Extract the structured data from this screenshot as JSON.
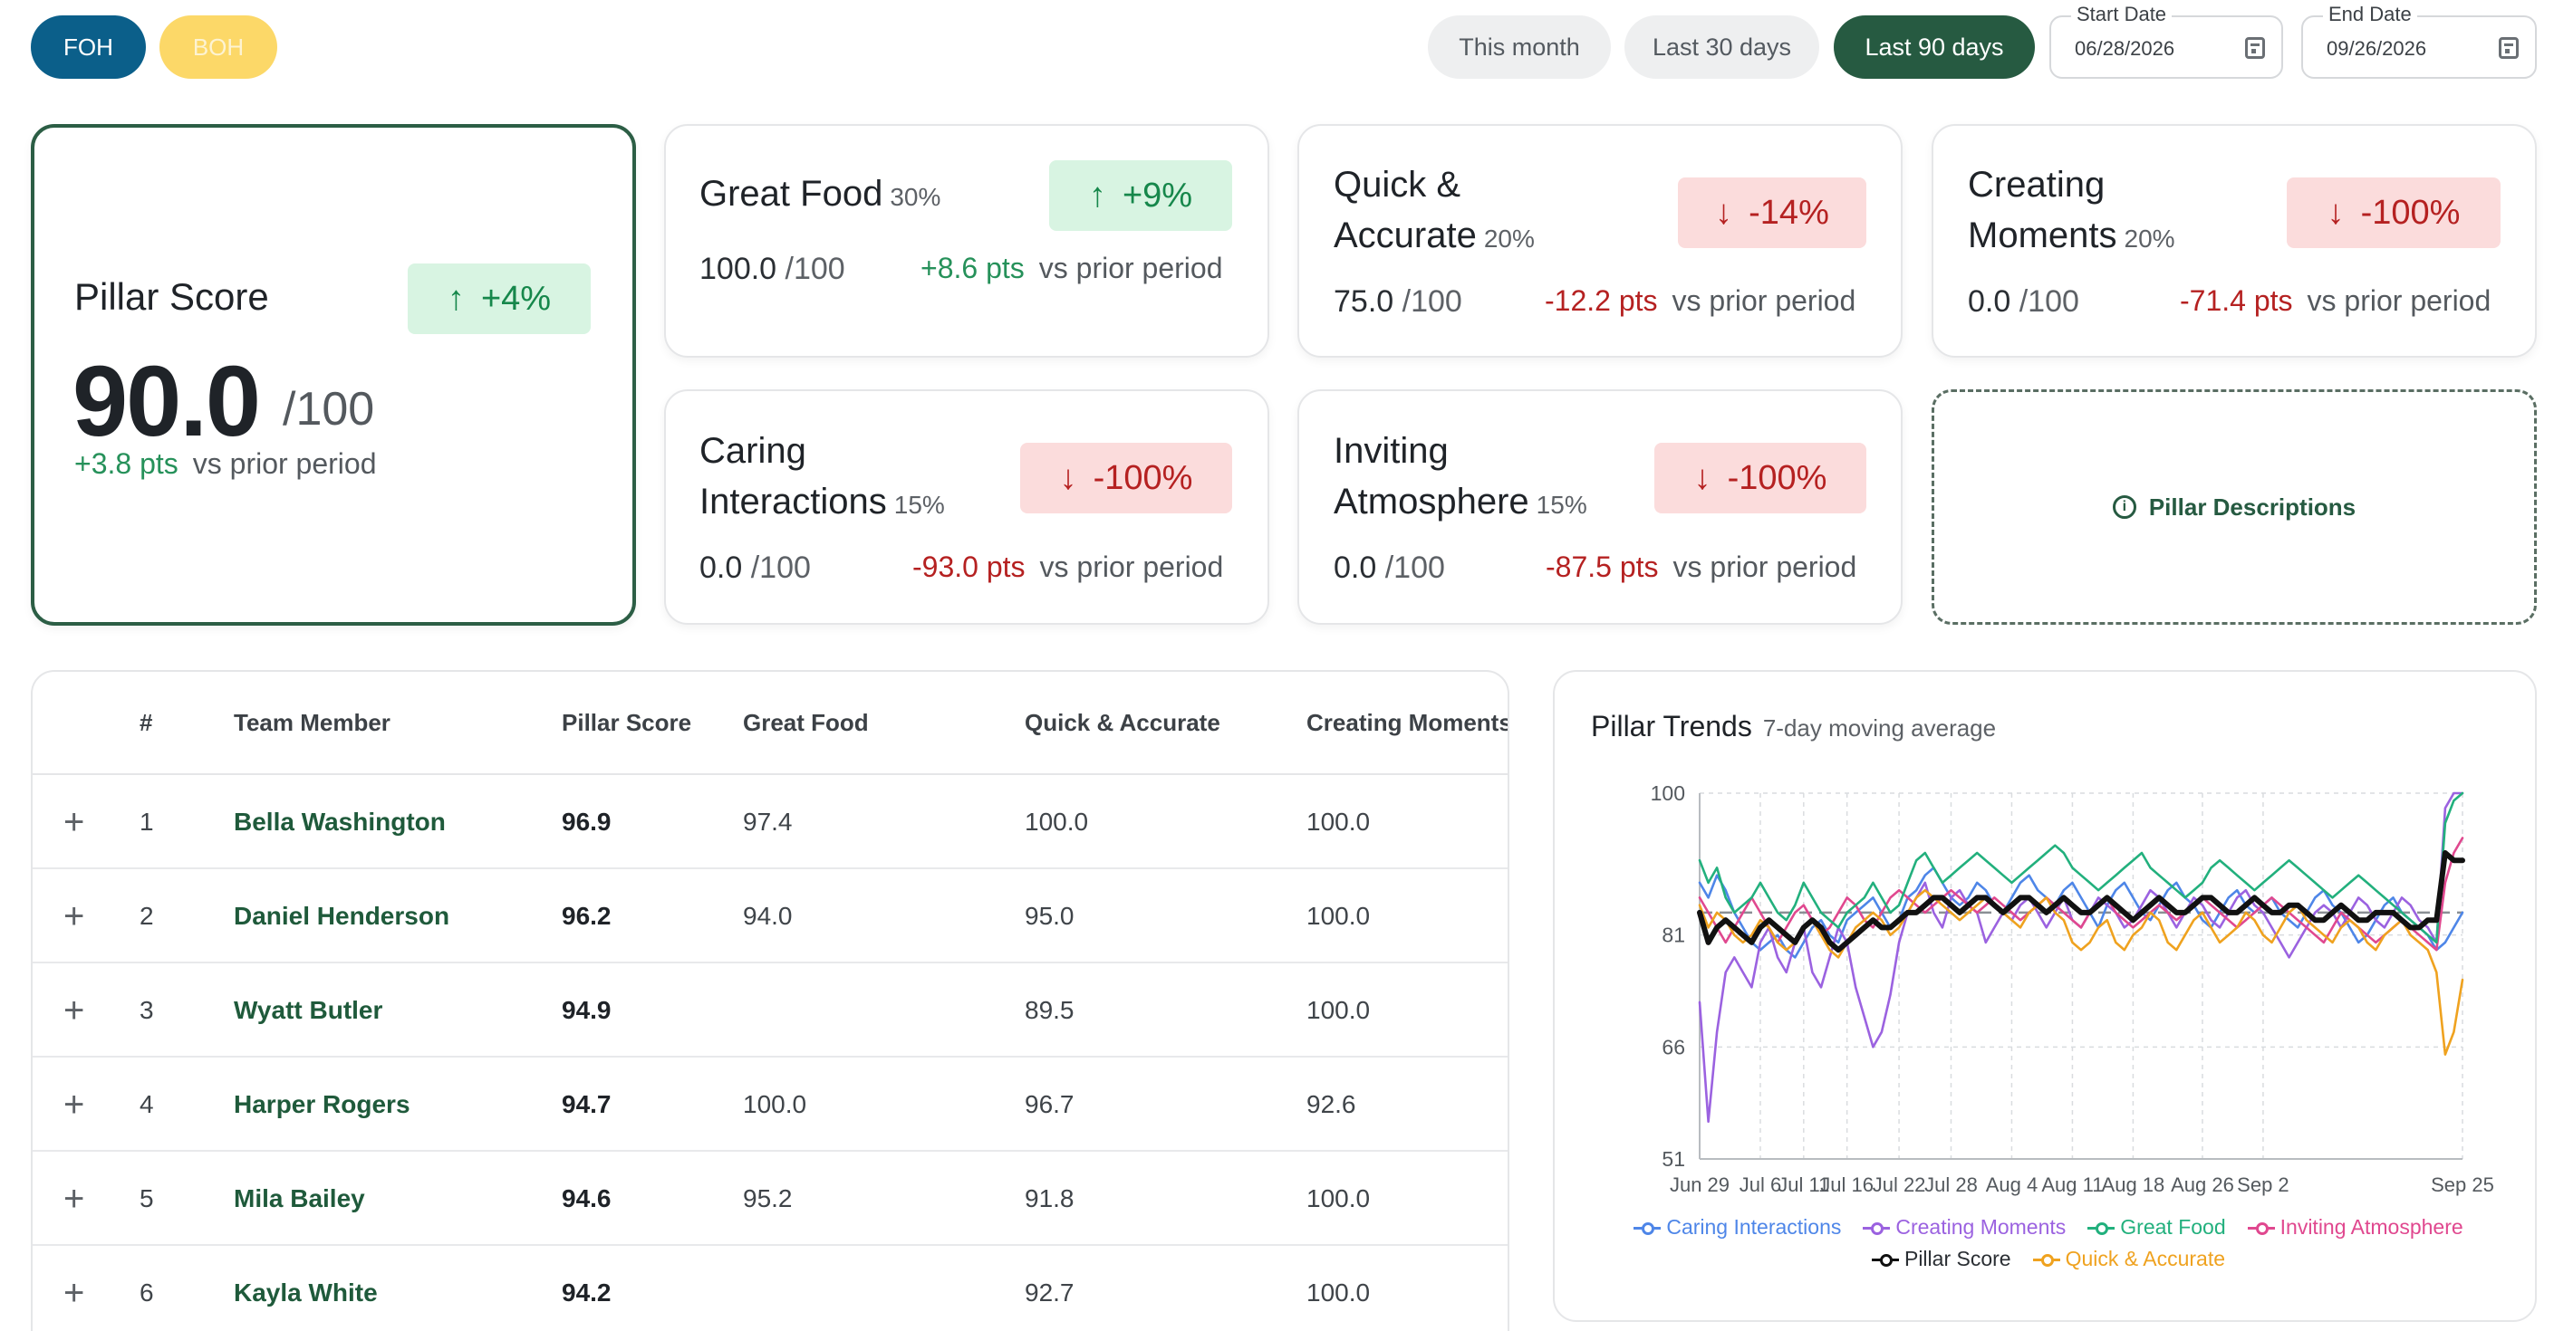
{
  "toggle": {
    "foh": "FOH",
    "boh": "BOH"
  },
  "ranges": {
    "month": "This month",
    "last30": "Last 30 days",
    "last90": "Last 90 days"
  },
  "dates": {
    "start_label": "Start Date",
    "start_value": "06/28/2026",
    "end_label": "End Date",
    "end_value": "09/26/2026"
  },
  "pillar_score": {
    "title": "Pillar Score",
    "badge": "+4%",
    "score": "90.0",
    "denominator": "/100",
    "delta": "+3.8 pts",
    "vs": "vs prior period"
  },
  "pillars": {
    "great_food": {
      "title": "Great Food",
      "weight": "30%",
      "badge": "+9%",
      "score": "100.0",
      "denominator": "/100",
      "delta": "+8.6 pts",
      "vs": "vs prior period"
    },
    "quick": {
      "title_1": "Quick &",
      "title_2": "Accurate",
      "weight": "20%",
      "badge": "-14%",
      "score": "75.0",
      "denominator": "/100",
      "delta": "-12.2 pts",
      "vs": "vs prior period"
    },
    "moments": {
      "title_1": "Creating",
      "title_2": "Moments",
      "weight": "20%",
      "badge": "-100%",
      "score": "0.0",
      "denominator": "/100",
      "delta": "-71.4 pts",
      "vs": "vs prior period"
    },
    "caring": {
      "title_1": "Caring",
      "title_2": "Interactions",
      "weight": "15%",
      "badge": "-100%",
      "score": "0.0",
      "denominator": "/100",
      "delta": "-93.0 pts",
      "vs": "vs prior period"
    },
    "inviting": {
      "title_1": "Inviting",
      "title_2": "Atmosphere",
      "weight": "15%",
      "badge": "-100%",
      "score": "0.0",
      "denominator": "/100",
      "delta": "-87.5 pts",
      "vs": "vs prior period"
    }
  },
  "descriptions_label": "Pillar Descriptions",
  "table": {
    "headers": {
      "rank": "#",
      "member": "Team Member",
      "pillar": "Pillar Score",
      "great_food": "Great Food",
      "quick": "Quick & Accurate",
      "moments": "Creating Moments"
    },
    "rows": [
      {
        "rank": "1",
        "name": "Bella Washington",
        "pillar": "96.9",
        "great_food": "97.4",
        "quick": "100.0",
        "moments": "100.0"
      },
      {
        "rank": "2",
        "name": "Daniel Henderson",
        "pillar": "96.2",
        "great_food": "94.0",
        "quick": "95.0",
        "moments": "100.0"
      },
      {
        "rank": "3",
        "name": "Wyatt Butler",
        "pillar": "94.9",
        "great_food": "",
        "quick": "89.5",
        "moments": "100.0"
      },
      {
        "rank": "4",
        "name": "Harper Rogers",
        "pillar": "94.7",
        "great_food": "100.0",
        "quick": "96.7",
        "moments": "92.6"
      },
      {
        "rank": "5",
        "name": "Mila Bailey",
        "pillar": "94.6",
        "great_food": "95.2",
        "quick": "91.8",
        "moments": "100.0"
      },
      {
        "rank": "6",
        "name": "Kayla White",
        "pillar": "94.2",
        "great_food": "",
        "quick": "92.7",
        "moments": "100.0"
      }
    ]
  },
  "colors": {
    "accent": "#265a41",
    "foh": "#0b5f8a",
    "boh": "#fcd868",
    "up": "#16874b",
    "down": "#b52121"
  },
  "chart_data": {
    "type": "line",
    "title": "Pillar Trends",
    "subtitle": "7-day moving average",
    "x_labels": [
      "Jun 29",
      "Jul 6",
      "Jul 11",
      "Jul 16",
      "Jul 22",
      "Jul 28",
      "Aug 4",
      "Aug 11",
      "Aug 18",
      "Aug 26",
      "Sep 2",
      "Sep 25"
    ],
    "x_label_days": [
      0,
      7,
      12,
      17,
      23,
      29,
      36,
      43,
      50,
      58,
      65,
      88
    ],
    "y_ticks": [
      100,
      81,
      66,
      51
    ],
    "ylim": [
      51,
      100
    ],
    "x_count": 89,
    "grid": true,
    "reference_line": 84,
    "legend_position": "bottom",
    "series": [
      {
        "name": "Caring Interactions",
        "color": "#4e86e8",
        "values": [
          88,
          86,
          89,
          87,
          84,
          82,
          80,
          79,
          80,
          81,
          79,
          78,
          80,
          82,
          83,
          81,
          80,
          83,
          84,
          85,
          86,
          84,
          82,
          83,
          86,
          87,
          89,
          90,
          88,
          86,
          85,
          86,
          88,
          87,
          85,
          84,
          86,
          88,
          89,
          87,
          86,
          85,
          87,
          88,
          86,
          84,
          82,
          85,
          87,
          88,
          86,
          84,
          83,
          85,
          87,
          88,
          86,
          85,
          83,
          82,
          84,
          86,
          87,
          85,
          84,
          85,
          86,
          84,
          83,
          82,
          84,
          86,
          87,
          85,
          84,
          82,
          80,
          81,
          83,
          85,
          86,
          84,
          83,
          82,
          81,
          79,
          80,
          82,
          84
        ]
      },
      {
        "name": "Creating Moments",
        "color": "#9b62e0",
        "values": [
          72,
          56,
          68,
          76,
          78,
          76,
          74,
          80,
          82,
          78,
          76,
          80,
          82,
          76,
          74,
          78,
          82,
          80,
          74,
          70,
          66,
          68,
          73,
          80,
          84,
          86,
          88,
          84,
          82,
          86,
          87,
          85,
          84,
          80,
          82,
          84,
          83,
          85,
          86,
          84,
          82,
          84,
          86,
          83,
          82,
          84,
          86,
          85,
          84,
          82,
          83,
          85,
          87,
          86,
          84,
          82,
          84,
          86,
          85,
          83,
          82,
          84,
          86,
          87,
          85,
          84,
          82,
          80,
          78,
          80,
          82,
          84,
          85,
          84,
          82,
          84,
          86,
          85,
          83,
          82,
          84,
          86,
          85,
          83,
          82,
          80,
          98,
          100,
          100
        ]
      },
      {
        "name": "Great Food",
        "color": "#22b07d",
        "values": [
          91,
          88,
          90,
          86,
          84,
          85,
          86,
          88,
          86,
          84,
          83,
          85,
          88,
          86,
          84,
          83,
          82,
          84,
          85,
          86,
          88,
          86,
          84,
          85,
          88,
          91,
          92,
          90,
          88,
          89,
          90,
          91,
          92,
          91,
          90,
          89,
          88,
          89,
          90,
          91,
          92,
          93,
          92,
          90,
          89,
          88,
          87,
          88,
          89,
          90,
          91,
          92,
          90,
          89,
          88,
          87,
          86,
          87,
          88,
          90,
          91,
          90,
          89,
          88,
          87,
          88,
          89,
          90,
          91,
          90,
          89,
          88,
          87,
          86,
          87,
          88,
          89,
          88,
          87,
          86,
          85,
          84,
          83,
          82,
          81,
          80,
          96,
          99,
          100
        ]
      },
      {
        "name": "Inviting Atmosphere",
        "color": "#e0488f",
        "values": [
          86,
          84,
          82,
          80,
          82,
          84,
          86,
          84,
          82,
          80,
          82,
          84,
          85,
          83,
          81,
          82,
          84,
          86,
          85,
          83,
          82,
          84,
          86,
          87,
          86,
          85,
          84,
          85,
          86,
          87,
          86,
          85,
          84,
          85,
          86,
          85,
          84,
          83,
          84,
          85,
          86,
          85,
          84,
          83,
          82,
          84,
          85,
          86,
          84,
          83,
          82,
          83,
          84,
          85,
          84,
          83,
          84,
          85,
          86,
          85,
          84,
          83,
          82,
          83,
          84,
          85,
          86,
          85,
          84,
          83,
          82,
          81,
          80,
          82,
          84,
          83,
          82,
          81,
          80,
          81,
          82,
          83,
          82,
          81,
          80,
          79,
          88,
          92,
          94
        ]
      },
      {
        "name": "Pillar Score",
        "color": "#111111",
        "values": [
          84,
          80,
          82,
          83,
          82,
          81,
          80,
          82,
          83,
          82,
          81,
          80,
          82,
          83,
          82,
          80,
          79,
          80,
          81,
          82,
          83,
          82,
          82,
          83,
          84,
          84,
          85,
          86,
          86,
          85,
          84,
          85,
          86,
          86,
          85,
          84,
          85,
          86,
          86,
          85,
          84,
          85,
          86,
          85,
          84,
          84,
          85,
          86,
          85,
          84,
          83,
          84,
          85,
          86,
          85,
          84,
          84,
          85,
          86,
          86,
          85,
          84,
          84,
          85,
          86,
          85,
          84,
          84,
          85,
          85,
          84,
          83,
          83,
          84,
          85,
          84,
          83,
          83,
          84,
          84,
          84,
          83,
          82,
          82,
          83,
          83,
          92,
          91,
          91
        ]
      },
      {
        "name": "Quick & Accurate",
        "color": "#efa21f",
        "values": [
          85,
          82,
          84,
          83,
          81,
          80,
          81,
          83,
          82,
          80,
          79,
          80,
          82,
          83,
          81,
          79,
          78,
          80,
          82,
          83,
          84,
          83,
          81,
          82,
          84,
          86,
          87,
          86,
          85,
          84,
          83,
          84,
          85,
          86,
          85,
          84,
          83,
          82,
          84,
          85,
          86,
          84,
          83,
          80,
          79,
          80,
          82,
          83,
          80,
          79,
          81,
          82,
          84,
          83,
          80,
          79,
          81,
          83,
          84,
          82,
          80,
          81,
          82,
          84,
          83,
          81,
          80,
          82,
          84,
          85,
          83,
          82,
          81,
          80,
          82,
          83,
          82,
          80,
          79,
          81,
          82,
          83,
          81,
          80,
          79,
          76,
          65,
          68,
          75
        ]
      }
    ]
  }
}
